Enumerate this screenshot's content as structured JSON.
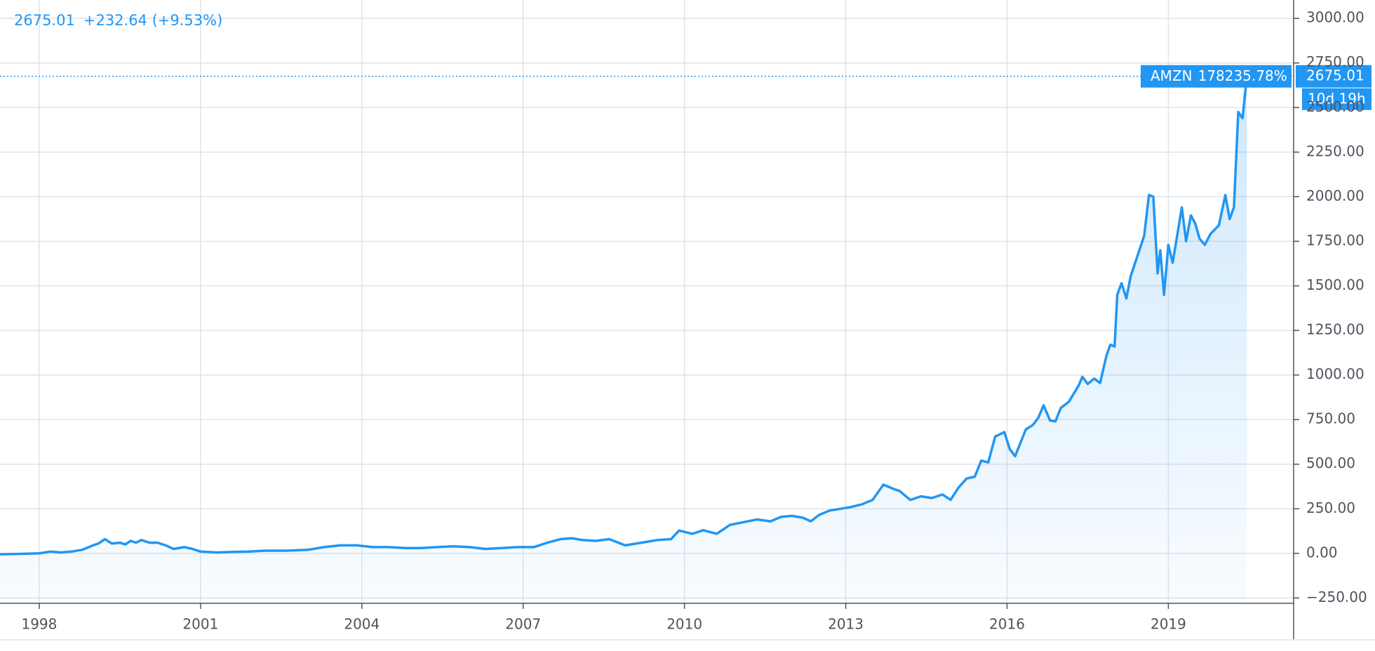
{
  "chart_data": {
    "type": "area",
    "header": {
      "change": "+232.64 (+9.53%)"
    },
    "last_change": "178235.78%",
    "countdown": "10d 19h",
    "series": [
      {
        "name": "AMZN",
        "color": "#2196f3",
        "x": [
          1997.27,
          1997.6,
          1998.0,
          1998.2,
          1998.4,
          1998.6,
          1998.8,
          1999.0,
          1999.1,
          1999.22,
          1999.35,
          1999.5,
          1999.6,
          1999.7,
          1999.8,
          1999.9,
          2000.05,
          2000.2,
          2000.35,
          2000.5,
          2000.7,
          2000.85,
          2001.0,
          2001.3,
          2001.6,
          2001.9,
          2002.2,
          2002.6,
          2003.0,
          2003.3,
          2003.6,
          2003.9,
          2004.2,
          2004.5,
          2004.8,
          2005.1,
          2005.4,
          2005.7,
          2006.0,
          2006.3,
          2006.6,
          2006.9,
          2007.2,
          2007.45,
          2007.7,
          2007.9,
          2008.1,
          2008.35,
          2008.6,
          2008.9,
          2009.2,
          2009.5,
          2009.75,
          2009.9,
          2010.15,
          2010.35,
          2010.6,
          2010.85,
          2011.1,
          2011.35,
          2011.6,
          2011.8,
          2012.0,
          2012.2,
          2012.35,
          2012.5,
          2012.7,
          2012.9,
          2013.1,
          2013.3,
          2013.5,
          2013.7,
          2013.9,
          2014.0,
          2014.2,
          2014.4,
          2014.6,
          2014.8,
          2014.95,
          2015.1,
          2015.25,
          2015.4,
          2015.52,
          2015.65,
          2015.78,
          2015.95,
          2016.05,
          2016.15,
          2016.35,
          2016.48,
          2016.58,
          2016.68,
          2016.8,
          2016.9,
          2017.0,
          2017.15,
          2017.33,
          2017.4,
          2017.5,
          2017.62,
          2017.73,
          2017.85,
          2017.92,
          2018.0,
          2018.05,
          2018.13,
          2018.22,
          2018.3,
          2018.55,
          2018.64,
          2018.72,
          2018.8,
          2018.85,
          2018.92,
          2019.0,
          2019.08,
          2019.25,
          2019.33,
          2019.42,
          2019.5,
          2019.58,
          2019.68,
          2019.78,
          2019.94,
          2020.06,
          2020.14,
          2020.22,
          2020.3,
          2020.38,
          2020.46
        ],
        "values": [
          -5,
          -3,
          0,
          10,
          5,
          10,
          20,
          45,
          55,
          80,
          55,
          60,
          50,
          70,
          60,
          75,
          60,
          60,
          45,
          25,
          35,
          25,
          10,
          5,
          8,
          10,
          15,
          15,
          20,
          35,
          45,
          45,
          35,
          35,
          30,
          30,
          35,
          40,
          35,
          25,
          30,
          35,
          35,
          60,
          80,
          85,
          75,
          70,
          80,
          45,
          60,
          75,
          80,
          128,
          110,
          130,
          110,
          160,
          175,
          190,
          180,
          205,
          210,
          200,
          180,
          215,
          240,
          250,
          260,
          275,
          300,
          385,
          360,
          350,
          300,
          320,
          310,
          330,
          300,
          370,
          420,
          430,
          520,
          510,
          655,
          680,
          585,
          545,
          695,
          720,
          760,
          830,
          745,
          740,
          815,
          850,
          940,
          990,
          950,
          980,
          955,
          1110,
          1170,
          1160,
          1450,
          1515,
          1430,
          1555,
          1780,
          2010,
          2000,
          1570,
          1700,
          1450,
          1730,
          1630,
          1940,
          1750,
          1895,
          1850,
          1765,
          1730,
          1790,
          1840,
          2010,
          1875,
          1940,
          2475,
          2440,
          2675.01
        ]
      }
    ],
    "xlim": [
      1997.27,
      2021.33
    ],
    "xticks": [
      1998,
      2001,
      2004,
      2007,
      2010,
      2013,
      2016,
      2019
    ],
    "ylim": [
      -280,
      3103
    ],
    "yticks": [
      {
        "value": -250,
        "label": "−250.00"
      },
      {
        "value": 0,
        "label": "0.00"
      },
      {
        "value": 250,
        "label": "250.00"
      },
      {
        "value": 500,
        "label": "500.00"
      },
      {
        "value": 750,
        "label": "750.00"
      },
      {
        "value": 1000,
        "label": "1000.00"
      },
      {
        "value": 1250,
        "label": "1250.00"
      },
      {
        "value": 1500,
        "label": "1500.00"
      },
      {
        "value": 1750,
        "label": "1750.00"
      },
      {
        "value": 2000,
        "label": "2000.00"
      },
      {
        "value": 2250,
        "label": "2250.00"
      },
      {
        "value": 2500,
        "label": "2500.00"
      },
      {
        "value": 2750,
        "label": "2750.00"
      },
      {
        "value": 3000,
        "label": "3000.00"
      }
    ],
    "grid": true
  }
}
